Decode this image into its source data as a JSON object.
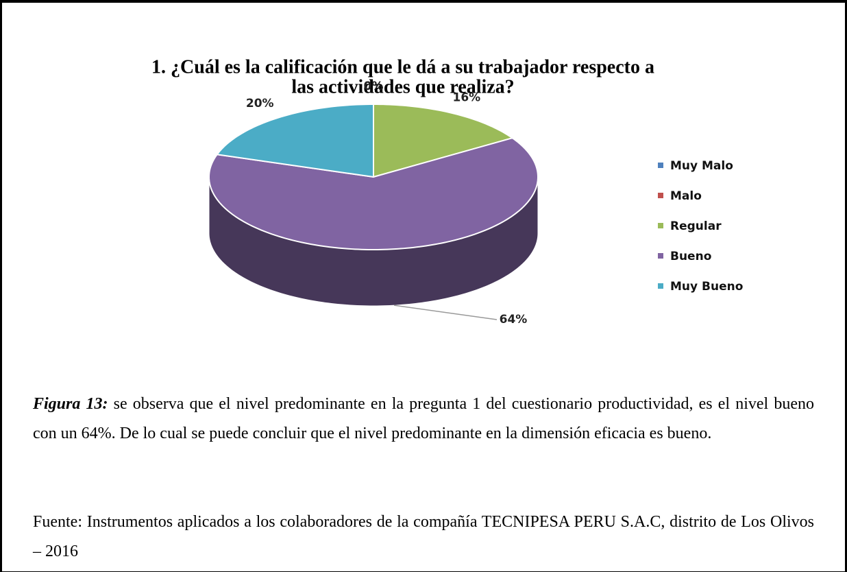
{
  "chart_data": {
    "type": "pie3d",
    "title": [
      "1. ¿Cuál es la calificación que le dá a su trabajador respecto a",
      "las actividades que realiza?"
    ],
    "categories": [
      "Muy Malo",
      "Malo",
      "Regular",
      "Bueno",
      "Muy Bueno"
    ],
    "values": [
      0,
      0,
      16,
      64,
      20
    ],
    "value_labels": [
      "0%",
      "0%",
      "16%",
      "64%",
      "20%"
    ],
    "colors": [
      "#4f81bd",
      "#c0504d",
      "#9bbb59",
      "#8064a2",
      "#4bacc6"
    ],
    "legend": "right"
  },
  "caption": {
    "label": "Figura 13:",
    "text": " se observa que el nivel predominante en la pregunta 1 del cuestionario productividad, es el nivel bueno con un 64%. De lo cual se puede concluir que el nivel predominante en la dimensión eficacia es bueno."
  },
  "source": "Fuente: Instrumentos aplicados a los colaboradores de la compañía TECNIPESA PERU S.A.C, distrito de Los Olivos – 2016"
}
